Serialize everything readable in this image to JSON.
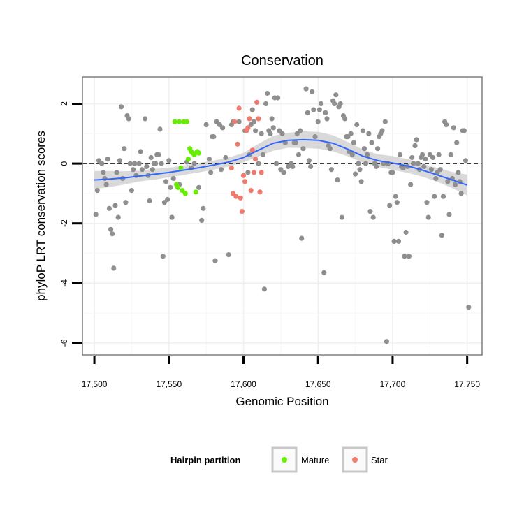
{
  "chart_data": {
    "type": "scatter",
    "title": "Conservation",
    "xlabel": "Genomic Position",
    "ylabel": "phyloP LRT conservation scores",
    "xlim": [
      17492,
      17760
    ],
    "ylim": [
      -6.4,
      2.9
    ],
    "x_ticks": [
      17500,
      17550,
      17600,
      17650,
      17700,
      17750
    ],
    "x_tick_labels": [
      "17,500",
      "17,550",
      "17,600",
      "17,650",
      "17,700",
      "17,750"
    ],
    "y_ticks": [
      2,
      0,
      -2,
      -4,
      -6
    ],
    "y_tick_labels": [
      "2",
      "0",
      "-2",
      "-4",
      "-6"
    ],
    "reference_line": {
      "y": 0,
      "style": "dashed"
    },
    "grid": true,
    "legend": {
      "title": "Hairpin partition",
      "placement": "bottom",
      "entries": [
        {
          "label": "Mature",
          "color": "#7fff00"
        },
        {
          "label": "Star",
          "color": "#f08070"
        }
      ]
    },
    "colors": {
      "other": "#8f8f8f",
      "mature": "#66ee00",
      "star": "#f07a6e",
      "smooth": "#3366ff",
      "band": "#cccccc"
    },
    "series": [
      {
        "group": "other",
        "points": [
          [
            17501,
            -1.7
          ],
          [
            17502,
            -0.9
          ],
          [
            17503,
            0.1
          ],
          [
            17505,
            0.0
          ],
          [
            17506,
            -0.3
          ],
          [
            17507,
            -0.5
          ],
          [
            17508,
            -0.7
          ],
          [
            17509,
            0.15
          ],
          [
            17510,
            -1.5
          ],
          [
            17511,
            -2.2
          ],
          [
            17512,
            -2.35
          ],
          [
            17513,
            -3.5
          ],
          [
            17514,
            -1.4
          ],
          [
            17515,
            -0.3
          ],
          [
            17516,
            -1.8
          ],
          [
            17517,
            0.1
          ],
          [
            17518,
            1.9
          ],
          [
            17519,
            -0.5
          ],
          [
            17520,
            0.5
          ],
          [
            17521,
            -1.3
          ],
          [
            17522,
            1.6
          ],
          [
            17523,
            1.5
          ],
          [
            17524,
            0.0
          ],
          [
            17525,
            -0.9
          ],
          [
            17526,
            -0.2
          ],
          [
            17527,
            0.0
          ],
          [
            17528,
            -0.4
          ],
          [
            17530,
            0.0
          ],
          [
            17531,
            0.4
          ],
          [
            17532,
            -0.2
          ],
          [
            17534,
            1.5
          ],
          [
            17535,
            -0.1
          ],
          [
            17536,
            -0.4
          ],
          [
            17537,
            -1.25
          ],
          [
            17538,
            0.2
          ],
          [
            17539,
            -0.2
          ],
          [
            17540,
            0.0
          ],
          [
            17541,
            0.0
          ],
          [
            17542,
            0.3
          ],
          [
            17543,
            0.3
          ],
          [
            17544,
            1.15
          ],
          [
            17545,
            0.0
          ],
          [
            17546,
            -3.1
          ],
          [
            17547,
            -1.3
          ],
          [
            17548,
            -0.6
          ],
          [
            17549,
            -1.2
          ],
          [
            17550,
            0.1
          ],
          [
            17551,
            -0.8
          ],
          [
            17552,
            -1.8
          ],
          [
            17553,
            -0.5
          ],
          [
            17557,
            -0.7
          ],
          [
            17562,
            0.05
          ],
          [
            17565,
            -0.15
          ],
          [
            17567,
            0.0
          ],
          [
            17569,
            0.4
          ],
          [
            17570,
            -0.8
          ],
          [
            17572,
            -1.9
          ],
          [
            17573,
            -1.5
          ],
          [
            17575,
            1.3
          ],
          [
            17577,
            0.15
          ],
          [
            17578,
            -0.3
          ],
          [
            17579,
            0.9
          ],
          [
            17580,
            0.9
          ],
          [
            17581,
            -3.25
          ],
          [
            17582,
            1.4
          ],
          [
            17584,
            1.3
          ],
          [
            17585,
            -0.2
          ],
          [
            17586,
            1.2
          ],
          [
            17588,
            0.2
          ],
          [
            17590,
            -3.05
          ],
          [
            17592,
            1.3
          ],
          [
            17593,
            1.4
          ],
          [
            17597,
            1.4
          ],
          [
            17601,
            1.1
          ],
          [
            17603,
            -0.3
          ],
          [
            17604,
            0.3
          ],
          [
            17605,
            1.3
          ],
          [
            17606,
            1.8
          ],
          [
            17607,
            1.4
          ],
          [
            17608,
            1.1
          ],
          [
            17610,
            0.0
          ],
          [
            17612,
            1.0
          ],
          [
            17613,
            0.3
          ],
          [
            17614,
            -4.2
          ],
          [
            17615,
            2.0
          ],
          [
            17616,
            2.35
          ],
          [
            17617,
            1.1
          ],
          [
            17618,
            1.0
          ],
          [
            17619,
            1.5
          ],
          [
            17620,
            1.2
          ],
          [
            17621,
            2.2
          ],
          [
            17622,
            0.0
          ],
          [
            17623,
            2.2
          ],
          [
            17624,
            1.1
          ],
          [
            17625,
            -0.2
          ],
          [
            17626,
            1.0
          ],
          [
            17627,
            -0.3
          ],
          [
            17628,
            0.7
          ],
          [
            17630,
            -0.1
          ],
          [
            17632,
            0.0
          ],
          [
            17633,
            -0.1
          ],
          [
            17634,
            0.7
          ],
          [
            17635,
            0.7
          ],
          [
            17636,
            1.0
          ],
          [
            17637,
            0.3
          ],
          [
            17638,
            1.1
          ],
          [
            17639,
            -2.5
          ],
          [
            17640,
            0.5
          ],
          [
            17642,
            2.5
          ],
          [
            17643,
            1.7
          ],
          [
            17644,
            0.1
          ],
          [
            17645,
            -0.1
          ],
          [
            17646,
            2.4
          ],
          [
            17647,
            1.8
          ],
          [
            17648,
            0.9
          ],
          [
            17650,
            1.4
          ],
          [
            17651,
            1.8
          ],
          [
            17652,
            2.0
          ],
          [
            17654,
            -3.65
          ],
          [
            17655,
            1.7
          ],
          [
            17656,
            1.5
          ],
          [
            17657,
            0.6
          ],
          [
            17658,
            0.5
          ],
          [
            17659,
            -0.2
          ],
          [
            17660,
            2.1
          ],
          [
            17661,
            2.0
          ],
          [
            17662,
            2.3
          ],
          [
            17663,
            -0.55
          ],
          [
            17664,
            1.9
          ],
          [
            17665,
            2.0
          ],
          [
            17666,
            -1.8
          ],
          [
            17667,
            1.6
          ],
          [
            17668,
            1.5
          ],
          [
            17669,
            0.9
          ],
          [
            17670,
            0.9
          ],
          [
            17671,
            0.4
          ],
          [
            17672,
            1.0
          ],
          [
            17673,
            0.3
          ],
          [
            17674,
            0.7
          ],
          [
            17675,
            -0.35
          ],
          [
            17676,
            1.3
          ],
          [
            17677,
            0.0
          ],
          [
            17678,
            -0.2
          ],
          [
            17679,
            -0.6
          ],
          [
            17680,
            1.1
          ],
          [
            17681,
            0.5
          ],
          [
            17682,
            0.0
          ],
          [
            17683,
            0.3
          ],
          [
            17684,
            1.0
          ],
          [
            17685,
            -1.6
          ],
          [
            17686,
            0.7
          ],
          [
            17687,
            -1.8
          ],
          [
            17688,
            0.0
          ],
          [
            17689,
            -0.1
          ],
          [
            17690,
            0.5
          ],
          [
            17691,
            0.9
          ],
          [
            17692,
            1.0
          ],
          [
            17693,
            1.1
          ],
          [
            17694,
            0.0
          ],
          [
            17695,
            1.4
          ],
          [
            17696,
            -5.95
          ],
          [
            17697,
            0.0
          ],
          [
            17698,
            -1.4
          ],
          [
            17699,
            -0.3
          ],
          [
            17700,
            -0.3
          ],
          [
            17701,
            -2.6
          ],
          [
            17702,
            -1.1
          ],
          [
            17703,
            -1.3
          ],
          [
            17704,
            -2.6
          ],
          [
            17705,
            0.3
          ],
          [
            17706,
            -0.1
          ],
          [
            17707,
            -0.15
          ],
          [
            17708,
            -3.1
          ],
          [
            17709,
            -2.3
          ],
          [
            17710,
            -0.1
          ],
          [
            17711,
            -3.1
          ],
          [
            17712,
            -0.7
          ],
          [
            17713,
            0.2
          ],
          [
            17714,
            0.0
          ],
          [
            17715,
            0.6
          ],
          [
            17716,
            0.8
          ],
          [
            17717,
            0.0
          ],
          [
            17718,
            -0.2
          ],
          [
            17719,
            0.2
          ],
          [
            17720,
            0.3
          ],
          [
            17721,
            -0.1
          ],
          [
            17722,
            0.15
          ],
          [
            17723,
            -1.3
          ],
          [
            17724,
            -1.8
          ],
          [
            17725,
            0.3
          ],
          [
            17726,
            -0.2
          ],
          [
            17727,
            0.2
          ],
          [
            17728,
            -1.1
          ],
          [
            17729,
            -0.5
          ],
          [
            17730,
            -0.3
          ],
          [
            17731,
            0.3
          ],
          [
            17732,
            -0.2
          ],
          [
            17733,
            -2.4
          ],
          [
            17734,
            -1.1
          ],
          [
            17735,
            1.4
          ],
          [
            17736,
            1.3
          ],
          [
            17737,
            -0.6
          ],
          [
            17738,
            -1.7
          ],
          [
            17739,
            0.3
          ],
          [
            17740,
            -0.5
          ],
          [
            17741,
            1.2
          ],
          [
            17742,
            -0.7
          ],
          [
            17743,
            0.7
          ],
          [
            17744,
            -0.3
          ],
          [
            17745,
            -0.6
          ],
          [
            17746,
            -1.0
          ],
          [
            17747,
            1.1
          ],
          [
            17748,
            1.1
          ],
          [
            17749,
            0.1
          ],
          [
            17751,
            -4.8
          ]
        ]
      },
      {
        "group": "mature",
        "name": "Mature",
        "points": [
          [
            17554,
            1.4
          ],
          [
            17555,
            -0.7
          ],
          [
            17556,
            -0.8
          ],
          [
            17557,
            1.4
          ],
          [
            17558,
            -0.15
          ],
          [
            17559,
            -0.9
          ],
          [
            17560,
            1.4
          ],
          [
            17561,
            -1.0
          ],
          [
            17562,
            1.4
          ],
          [
            17563,
            0.15
          ],
          [
            17564,
            0.5
          ],
          [
            17565,
            0.4
          ],
          [
            17566,
            0.35
          ],
          [
            17567,
            0.3
          ],
          [
            17568,
            -0.95
          ],
          [
            17569,
            0.4
          ],
          [
            17570,
            0.35
          ]
        ]
      },
      {
        "group": "star",
        "name": "Star",
        "points": [
          [
            17592,
            -0.15
          ],
          [
            17593,
            -1.0
          ],
          [
            17594,
            1.4
          ],
          [
            17595,
            -1.1
          ],
          [
            17596,
            0.65
          ],
          [
            17597,
            1.85
          ],
          [
            17598,
            -1.15
          ],
          [
            17599,
            -1.6
          ],
          [
            17600,
            -0.4
          ],
          [
            17601,
            -0.6
          ],
          [
            17602,
            1.1
          ],
          [
            17603,
            1.2
          ],
          [
            17604,
            1.5
          ],
          [
            17605,
            -0.9
          ],
          [
            17606,
            0.45
          ],
          [
            17607,
            -0.3
          ],
          [
            17608,
            0.15
          ],
          [
            17609,
            2.05
          ],
          [
            17610,
            1.5
          ],
          [
            17611,
            -0.95
          ],
          [
            17612,
            -0.3
          ]
        ]
      }
    ],
    "smooth": {
      "x": [
        17500,
        17510,
        17520,
        17530,
        17540,
        17550,
        17560,
        17570,
        17580,
        17590,
        17600,
        17610,
        17620,
        17630,
        17640,
        17650,
        17660,
        17670,
        17680,
        17690,
        17700,
        17710,
        17720,
        17730,
        17740,
        17750
      ],
      "y": [
        -0.55,
        -0.52,
        -0.48,
        -0.42,
        -0.36,
        -0.3,
        -0.22,
        -0.14,
        -0.05,
        0.05,
        0.2,
        0.45,
        0.68,
        0.78,
        0.8,
        0.78,
        0.68,
        0.48,
        0.25,
        0.1,
        0.02,
        -0.08,
        -0.22,
        -0.38,
        -0.55,
        -0.72
      ],
      "upper": [
        -0.25,
        -0.25,
        -0.26,
        -0.24,
        -0.18,
        -0.14,
        -0.06,
        0.02,
        0.1,
        0.2,
        0.36,
        0.66,
        0.93,
        1.03,
        1.08,
        1.06,
        0.95,
        0.72,
        0.47,
        0.31,
        0.25,
        0.15,
        0.0,
        -0.15,
        -0.28,
        -0.37
      ],
      "lower": [
        -0.85,
        -0.79,
        -0.7,
        -0.6,
        -0.54,
        -0.46,
        -0.38,
        -0.3,
        -0.2,
        -0.1,
        0.04,
        0.24,
        0.43,
        0.53,
        0.52,
        0.5,
        0.41,
        0.24,
        0.03,
        -0.11,
        -0.21,
        -0.31,
        -0.44,
        -0.61,
        -0.82,
        -1.07
      ]
    }
  }
}
